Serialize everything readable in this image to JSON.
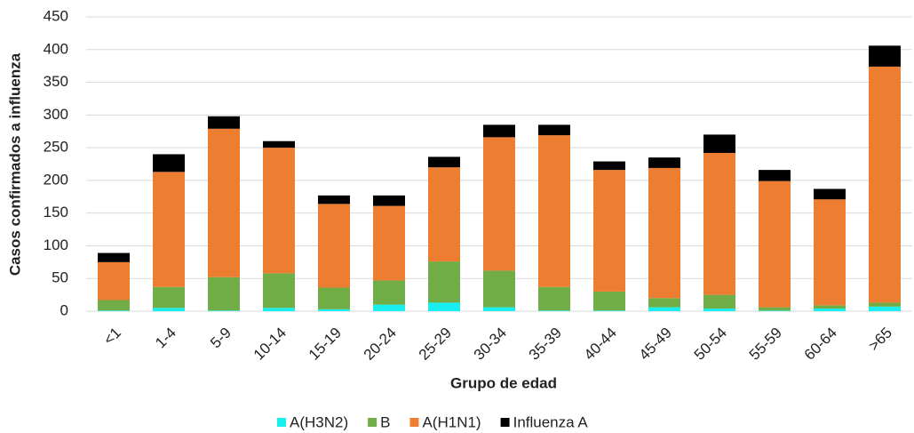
{
  "chart_data": {
    "type": "stacked_bar",
    "y_axis_label": "Casos confirmados a influenza",
    "x_axis_label": "Grupo de edad",
    "categories": [
      "<1",
      "1-4",
      "5-9",
      "10-14",
      "15-19",
      "20-24",
      "25-29",
      "30-34",
      "35-39",
      "40-44",
      "45-49",
      "50-54",
      "55-59",
      "60-64",
      ">65"
    ],
    "series": [
      {
        "name": "A(H3N2)",
        "color": "#19eef0",
        "values": [
          1,
          5,
          1,
          5,
          3,
          10,
          13,
          6,
          1,
          1,
          6,
          4,
          1,
          4,
          7
        ]
      },
      {
        "name": "B",
        "color": "#70ad47",
        "values": [
          16,
          32,
          51,
          53,
          33,
          37,
          63,
          56,
          36,
          29,
          14,
          21,
          5,
          5,
          6
        ]
      },
      {
        "name": "A(H1N1)",
        "color": "#ed7d31",
        "values": [
          58,
          176,
          227,
          192,
          128,
          114,
          144,
          204,
          232,
          186,
          199,
          217,
          193,
          162,
          361
        ]
      },
      {
        "name": "Influenza A",
        "color": "#000000",
        "values": [
          14,
          27,
          19,
          10,
          13,
          16,
          16,
          19,
          16,
          13,
          16,
          28,
          17,
          16,
          32
        ]
      }
    ],
    "ylim": [
      0,
      450
    ],
    "yticks": [
      0,
      50,
      100,
      150,
      200,
      250,
      300,
      350,
      400,
      450
    ],
    "grid": true,
    "legend": "bottom"
  }
}
